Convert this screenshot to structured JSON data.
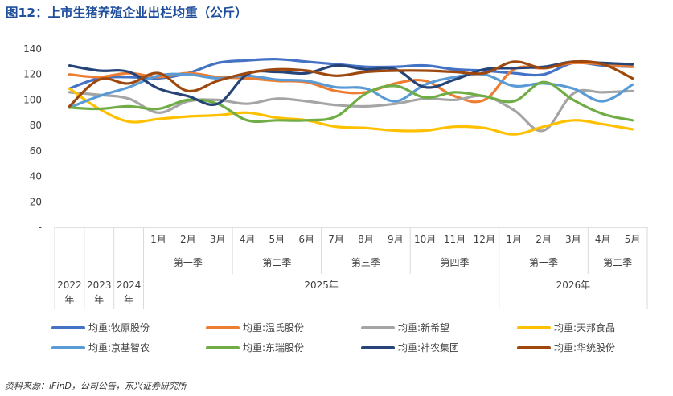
{
  "chart_data": {
    "type": "line",
    "title": "图12：上市生猪养殖企业出栏均重（公斤）",
    "xlabel": "",
    "ylabel": "",
    "ylim": [
      0,
      140
    ],
    "y_ticks": [
      "-",
      "20",
      "40",
      "60",
      "80",
      "100",
      "120",
      "140"
    ],
    "grid": false,
    "legend_position": "bottom",
    "categories": [
      {
        "label": "2022年",
        "group": ""
      },
      {
        "label": "2023年",
        "group": ""
      },
      {
        "label": "2024年",
        "group": ""
      },
      {
        "label": "1月",
        "group": "第一季",
        "year": "2025年"
      },
      {
        "label": "2月",
        "group": "第一季",
        "year": "2025年"
      },
      {
        "label": "3月",
        "group": "第一季",
        "year": "2025年"
      },
      {
        "label": "4月",
        "group": "第二季",
        "year": "2025年"
      },
      {
        "label": "5月",
        "group": "第二季",
        "year": "2025年"
      },
      {
        "label": "6月",
        "group": "第二季",
        "year": "2025年"
      },
      {
        "label": "7月",
        "group": "第三季",
        "year": "2025年"
      },
      {
        "label": "8月",
        "group": "第三季",
        "year": "2025年"
      },
      {
        "label": "9月",
        "group": "第三季",
        "year": "2025年"
      },
      {
        "label": "10月",
        "group": "第四季",
        "year": "2025年"
      },
      {
        "label": "11月",
        "group": "第四季",
        "year": "2025年"
      },
      {
        "label": "12月",
        "group": "第四季",
        "year": "2025年"
      },
      {
        "label": "1月",
        "group": "第一季",
        "year": "2026年"
      },
      {
        "label": "2月",
        "group": "第一季",
        "year": "2026年"
      },
      {
        "label": "3月",
        "group": "第一季",
        "year": "2026年"
      },
      {
        "label": "4月",
        "group": "第二季",
        "year": "2026年"
      },
      {
        "label": "5月",
        "group": "第二季",
        "year": "2026年"
      }
    ],
    "quarter_groups": [
      {
        "label": "第一季",
        "start": 3,
        "end": 5
      },
      {
        "label": "第二季",
        "start": 6,
        "end": 8
      },
      {
        "label": "第三季",
        "start": 9,
        "end": 11
      },
      {
        "label": "第四季",
        "start": 12,
        "end": 14
      },
      {
        "label": "第一季",
        "start": 15,
        "end": 17
      },
      {
        "label": "第二季",
        "start": 18,
        "end": 19
      }
    ],
    "year_groups": [
      {
        "label": "2025年",
        "start": 3,
        "end": 14
      },
      {
        "label": "2026年",
        "start": 15,
        "end": 19
      }
    ],
    "series": [
      {
        "name": "均重:牧原股份",
        "color": "#4472c4",
        "values": [
          109,
          117,
          118,
          117,
          121,
          129,
          131,
          132,
          130,
          128,
          126,
          126,
          127,
          124,
          123,
          121,
          120,
          129,
          127,
          126
        ]
      },
      {
        "name": "均重:温氏股份",
        "color": "#ed7d31",
        "values": [
          120,
          118,
          121,
          118,
          121,
          118,
          117,
          115,
          114,
          107,
          106,
          113,
          115,
          103,
          100,
          124,
          125,
          129,
          128,
          126
        ]
      },
      {
        "name": "均重:新希望",
        "color": "#a5a5a5",
        "values": [
          106,
          104,
          101,
          90,
          99,
          100,
          97,
          101,
          99,
          96,
          95,
          97,
          101,
          100,
          103,
          92,
          76,
          105,
          106,
          107
        ]
      },
      {
        "name": "均重:天邦食品",
        "color": "#ffc000",
        "values": [
          109,
          93,
          83,
          85,
          87,
          88,
          90,
          86,
          84,
          79,
          78,
          76,
          76,
          79,
          78,
          73,
          79,
          84,
          81,
          77
        ]
      },
      {
        "name": "均重:京基智农",
        "color": "#5b9bd5",
        "values": [
          94,
          103,
          110,
          119,
          120,
          117,
          119,
          116,
          115,
          110,
          109,
          99,
          112,
          118,
          120,
          111,
          113,
          109,
          99,
          112
        ]
      },
      {
        "name": "均重:东瑞股份",
        "color": "#70ad47",
        "values": [
          94,
          93,
          95,
          93,
          100,
          97,
          84,
          84,
          84,
          87,
          105,
          111,
          102,
          106,
          103,
          99,
          114,
          100,
          89,
          84
        ]
      },
      {
        "name": "均重:神农集团",
        "color": "#264478",
        "values": [
          127,
          123,
          122,
          109,
          103,
          97,
          120,
          122,
          121,
          127,
          124,
          124,
          110,
          116,
          124,
          125,
          126,
          130,
          129,
          128
        ]
      },
      {
        "name": "均重:华统股份",
        "color": "#9e480e",
        "values": [
          95,
          116,
          113,
          121,
          107,
          115,
          121,
          124,
          123,
          119,
          122,
          123,
          123,
          122,
          121,
          130,
          125,
          130,
          128,
          117
        ]
      }
    ]
  },
  "source_note": "资料来源：iFinD，公司公告，东兴证券研究所"
}
